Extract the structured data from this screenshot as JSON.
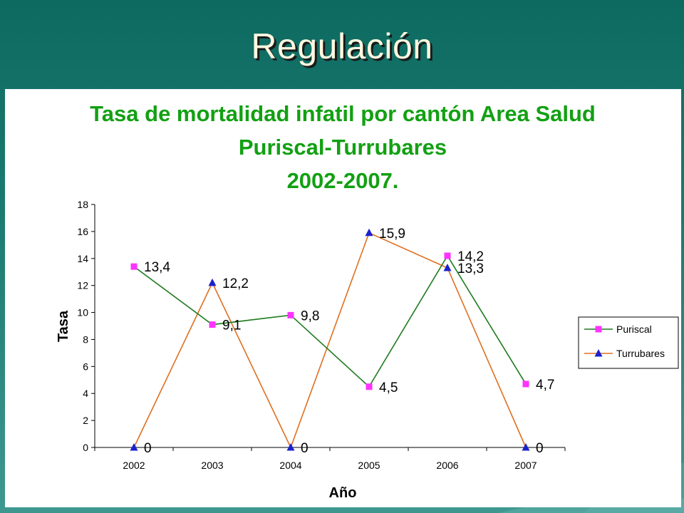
{
  "slide": {
    "title": "Regulación"
  },
  "chart_data": {
    "type": "line",
    "title_lines": [
      "Tasa de mortalidad infatil por cantón Area Salud",
      "Puriscal-Turrubares",
      "2002-2007."
    ],
    "xlabel": "Año",
    "ylabel": "Tasa",
    "categories": [
      "2002",
      "2003",
      "2004",
      "2005",
      "2006",
      "2007"
    ],
    "ylim": [
      0,
      18
    ],
    "yticks": [
      0,
      2,
      4,
      6,
      8,
      10,
      12,
      14,
      16,
      18
    ],
    "grid": false,
    "legend_position": "right",
    "series": [
      {
        "name": "Puriscal",
        "values": [
          13.4,
          9.1,
          9.8,
          4.5,
          14.2,
          4.7
        ],
        "labels": [
          "13,4",
          "9,1",
          "9,8",
          "4,5",
          "14,2",
          "4,7"
        ],
        "line_color": "#1e7b1e",
        "marker": "square",
        "marker_color": "#ff33ff"
      },
      {
        "name": "Turrubares",
        "values": [
          0,
          12.2,
          0,
          15.9,
          13.3,
          0
        ],
        "labels": [
          "0",
          "12,2",
          "0",
          "15,9",
          "13,3",
          "0"
        ],
        "line_color": "#e07020",
        "marker": "triangle",
        "marker_color": "#1a22cc"
      }
    ]
  }
}
